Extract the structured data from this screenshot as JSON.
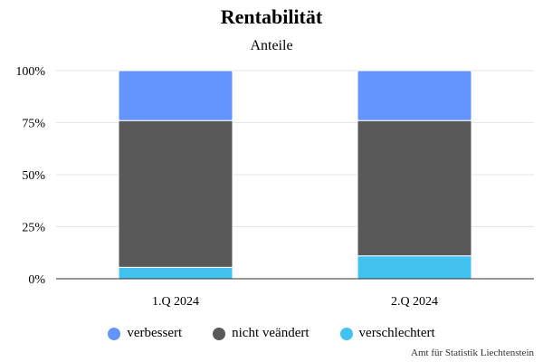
{
  "chart_data": {
    "type": "bar",
    "stacked": true,
    "title": "Rentabilität",
    "subtitle": "Anteile",
    "categories": [
      "1.Q 2024",
      "2.Q 2024"
    ],
    "series": [
      {
        "name": "verschlechtert",
        "values": [
          5.5,
          11
        ],
        "color": "#42c3ef"
      },
      {
        "name": "nicht veändert",
        "values": [
          70.5,
          65
        ],
        "color": "#595959"
      },
      {
        "name": "verbessert",
        "values": [
          24,
          24
        ],
        "color": "#6495ff"
      }
    ],
    "ylim": [
      0,
      100
    ],
    "yticks": [
      "0%",
      "25%",
      "50%",
      "75%",
      "100%"
    ],
    "grid": true,
    "legend": "bottom",
    "legend_order": [
      "verbessert",
      "nicht veändert",
      "verschlechtert"
    ],
    "credit": "Amt für Statistik Liechtenstein"
  }
}
